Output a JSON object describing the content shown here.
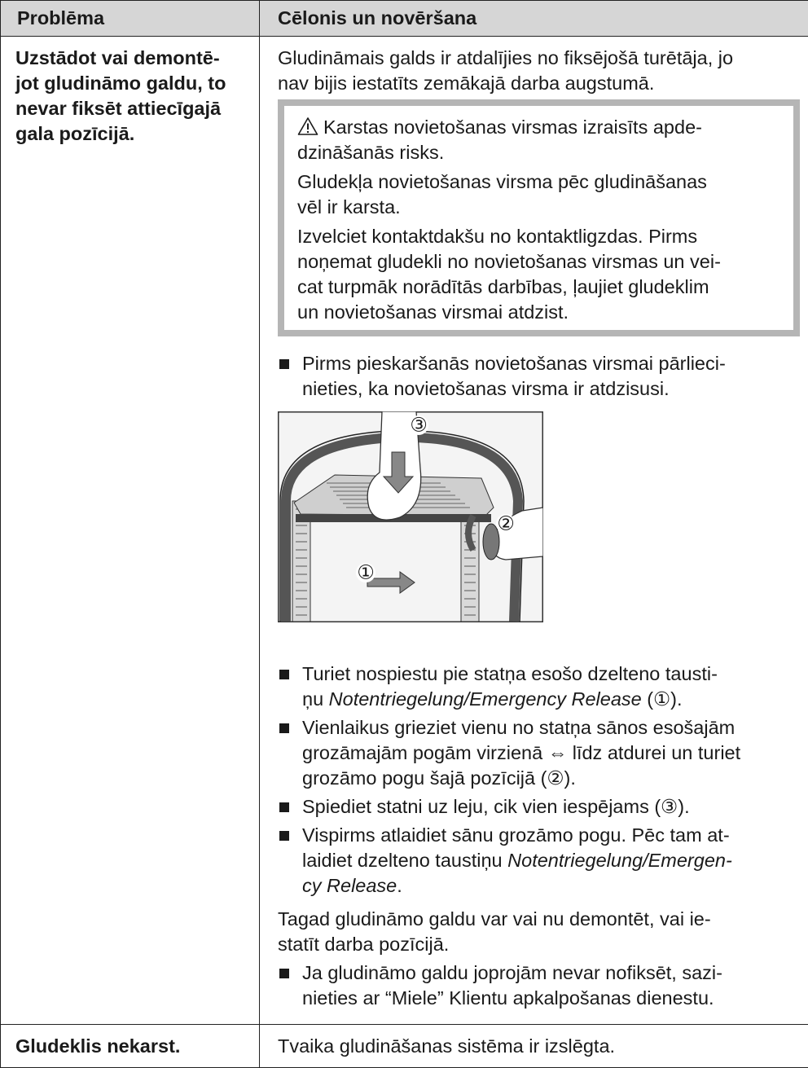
{
  "table": {
    "header": [
      "Problēma",
      "Cēlonis un novēršana"
    ],
    "rows": [
      {
        "problem": [
          "Uzstādot vai demontē-",
          "jot gludināmo galdu, to",
          "nevar fiksēt attiecīgajā",
          "gala pozīcijā."
        ],
        "cause": [
          {
            "kind": "paragraph",
            "lines": [
              "Gludināmais galds ir atdalījies no fiksējošā turētāja, jo",
              "nav bijis iestatīts zemākajā darba augstumā."
            ]
          },
          {
            "kind": "warning",
            "paragraphs": [
              [
                "Karstas novietošanas virsmas izraisīts apde-",
                "dzināšanās risks."
              ],
              [
                "Gludekļa novietošanas virsma pēc gludināšanas",
                "vēl ir karsta."
              ],
              [
                "Izvelciet kontaktdakšu no kontaktligzdas. Pirms",
                "noņemat gludekli no novietošanas virsmas un vei-",
                "cat turpmāk norādītās darbības, ļaujiet gludeklim",
                "un novietošanas virsmai atdzist."
              ]
            ]
          },
          {
            "kind": "bullets",
            "items": [
              [
                "Pirms pieskaršanās novietošanas virsmai pārlieci-",
                "nieties, ka novietošanas virsma ir atdzisusi."
              ]
            ]
          },
          {
            "kind": "figure",
            "callouts": [
              "①",
              "②",
              "③"
            ]
          },
          {
            "kind": "bullets",
            "items": [
              [
                "Turiet nospiestu pie statņa esošo dzelteno tausti-",
                [
                  "ņu ",
                  {
                    "text": "Notentriegelung/Emergency Release",
                    "italic": true
                  },
                  " (①)."
                ]
              ],
              [
                "Vienlaikus grieziet vienu no statņa sānos esošajām",
                "grozāmajām pogām virzienā ⇔ līdz atdurei un turiet",
                "grozāmo pogu šajā pozīcijā (②)."
              ],
              [
                "Spiediet statni uz leju, cik vien iespējams (③)."
              ],
              [
                "Vispirms atlaidiet sānu grozāmo pogu. Pēc tam at-",
                [
                  "laidiet dzelteno taustiņu ",
                  {
                    "text": "Notentriegelung/Emergen-",
                    "italic": true
                  }
                ],
                [
                  {
                    "text": "cy Release",
                    "italic": true
                  },
                  "."
                ]
              ]
            ]
          },
          {
            "kind": "paragraph",
            "lines": [
              "Tagad gludināmo galdu var vai nu demontēt, vai ie-",
              "statīt darba pozīcijā."
            ]
          },
          {
            "kind": "bullets",
            "items": [
              [
                "Ja gludināmo galdu joprojām nevar nofiksēt, sazi-",
                "nieties ar “Miele” Klientu apkalpošanas dienestu."
              ]
            ]
          }
        ]
      },
      {
        "problem": [
          "Gludeklis nekarst."
        ],
        "cause": [
          {
            "kind": "paragraph",
            "lines": [
              "Tvaika gludināšanas sistēma ir izslēgta."
            ]
          }
        ]
      }
    ]
  }
}
